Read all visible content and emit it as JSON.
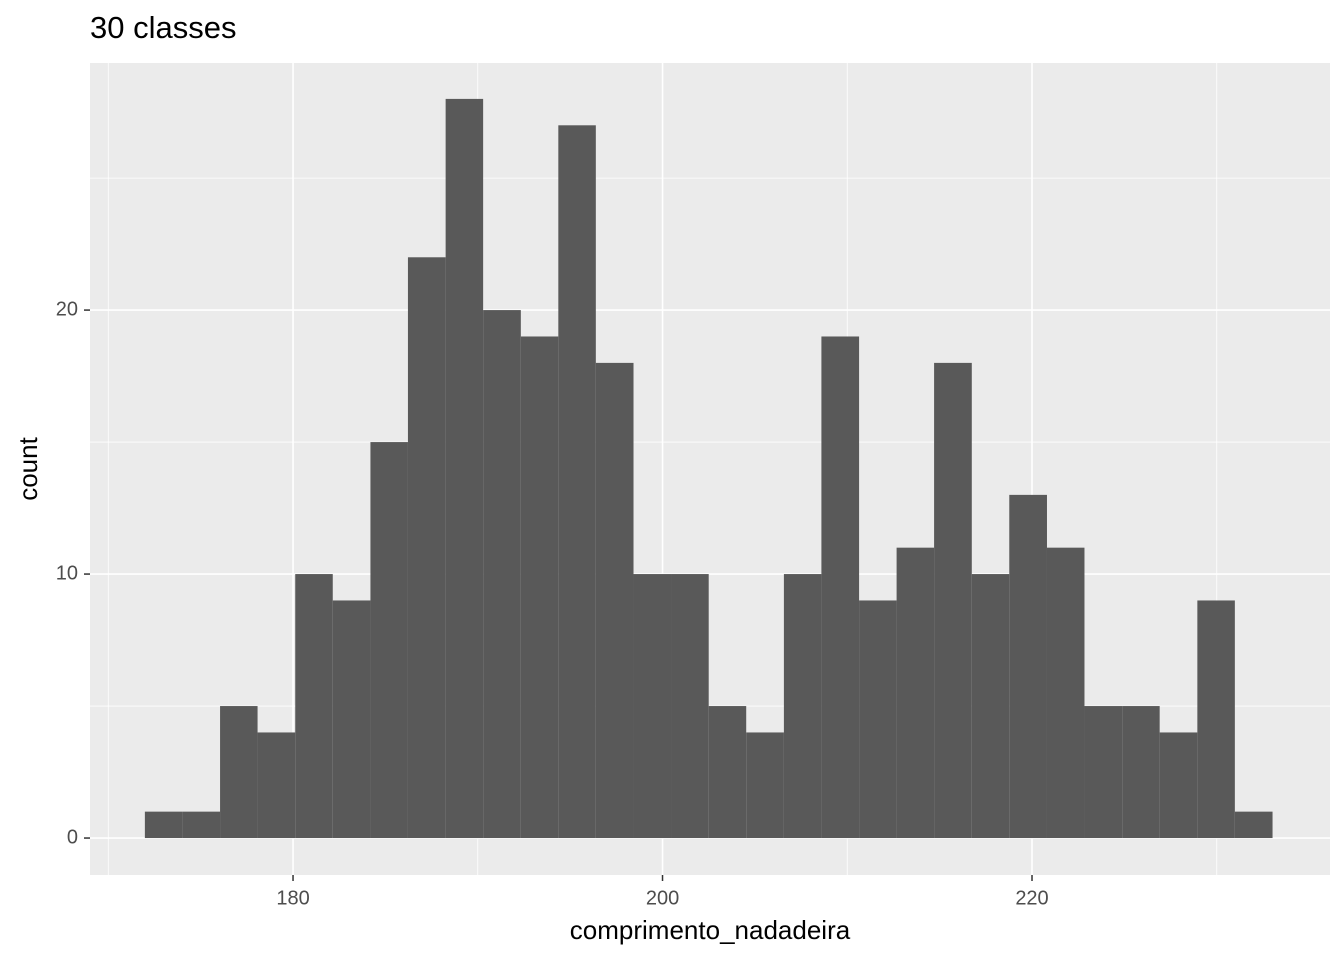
{
  "chart_data": {
    "type": "histogram",
    "title": "30 classes",
    "x_label": "comprimento_nadadeira",
    "y_label": "count",
    "bins": [
      171.98,
      174.01,
      176.05,
      178.08,
      180.12,
      182.15,
      184.19,
      186.22,
      188.26,
      190.29,
      192.33,
      194.36,
      196.39,
      198.43,
      200.46,
      202.5,
      204.53,
      206.57,
      208.6,
      210.64,
      212.67,
      214.7,
      216.74,
      218.77,
      220.81,
      222.84,
      224.88,
      226.91,
      228.95,
      230.98,
      233.02
    ],
    "values": [
      1,
      1,
      5,
      4,
      10,
      9,
      15,
      22,
      28,
      20,
      19,
      27,
      18,
      10,
      10,
      5,
      4,
      10,
      19,
      9,
      11,
      18,
      10,
      13,
      11,
      5,
      5,
      4,
      9,
      1
    ],
    "color": "#595959",
    "xlim": [
      169.01,
      236.13
    ],
    "ylim": [
      -1.4,
      29.36
    ],
    "xticks": [
      180,
      200,
      220
    ],
    "yticks": [
      0,
      10,
      20
    ],
    "xminor": [
      170,
      190,
      210,
      230
    ],
    "yminor": [
      5,
      15,
      25
    ],
    "grid": true
  }
}
